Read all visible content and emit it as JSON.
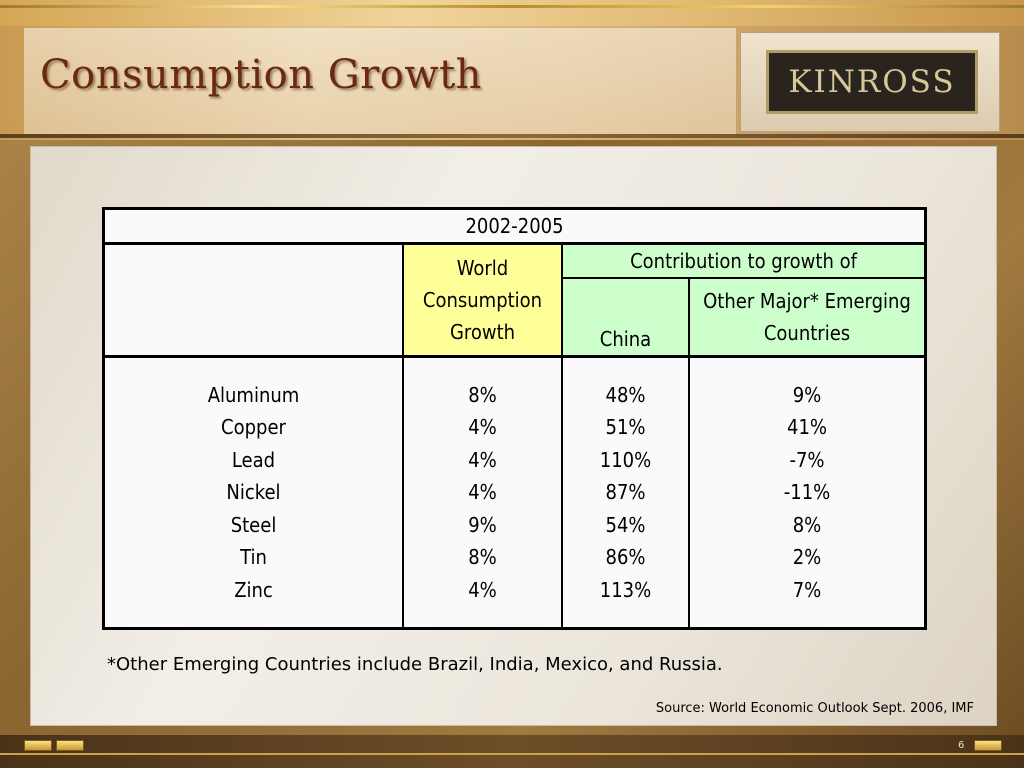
{
  "slide": {
    "title": "Consumption Growth",
    "logo_text": "KINROSS",
    "page_number": "6"
  },
  "table": {
    "period": "2002-2005",
    "world_header": "World Consumption Growth",
    "contribution_header": "Contribution to growth of",
    "china_header": "China",
    "other_header": "Other Major* Emerging Countries",
    "rows": [
      {
        "metal": "Aluminum",
        "world": "8%",
        "china": "48%",
        "other": "9%"
      },
      {
        "metal": "Copper",
        "world": "4%",
        "china": "51%",
        "other": "41%"
      },
      {
        "metal": "Lead",
        "world": "4%",
        "china": "110%",
        "other": "-7%"
      },
      {
        "metal": "Nickel",
        "world": "4%",
        "china": "87%",
        "other": "-11%"
      },
      {
        "metal": "Steel",
        "world": "9%",
        "china": "54%",
        "other": "8%"
      },
      {
        "metal": "Tin",
        "world": "8%",
        "china": "86%",
        "other": "2%"
      },
      {
        "metal": "Zinc",
        "world": "4%",
        "china": "113%",
        "other": "7%"
      }
    ]
  },
  "footnote": "*Other Emerging Countries include Brazil, India, Mexico, and Russia.",
  "source": "Source: World Economic Outlook Sept. 2006, IMF",
  "colors": {
    "world_header_bg": "#ffff99",
    "contribution_header_bg": "#ccffcc",
    "title_color": "#6b2a10"
  }
}
